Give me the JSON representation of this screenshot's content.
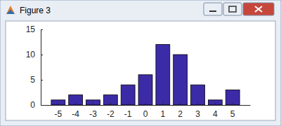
{
  "chart_data": {
    "type": "bar",
    "title": "Figure 3",
    "categories": [
      -5,
      -4,
      -3,
      -2,
      -1,
      0,
      1,
      2,
      3,
      4,
      5
    ],
    "values": [
      1,
      2,
      1,
      2,
      4,
      6,
      12,
      10,
      4,
      1,
      3
    ],
    "color": "#3c2ba6",
    "ylim": [
      0,
      15
    ],
    "yticks": [
      0,
      5,
      10,
      15
    ]
  }
}
